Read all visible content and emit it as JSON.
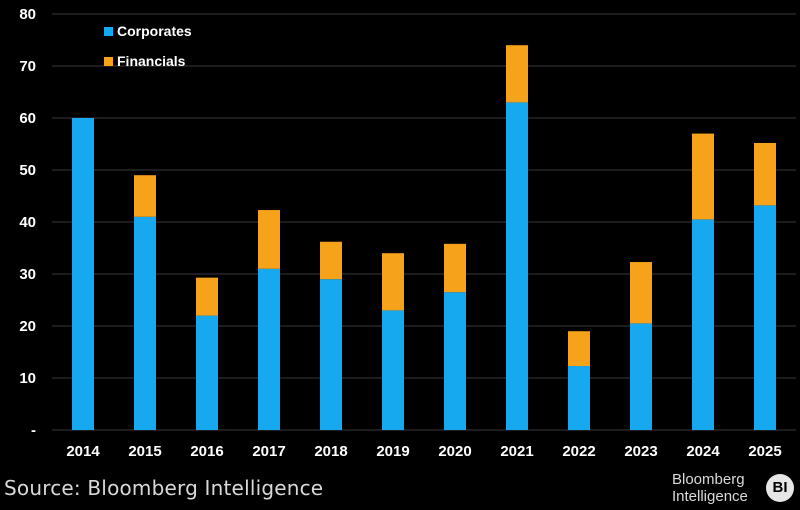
{
  "chart_data": {
    "type": "bar",
    "stacked": true,
    "categories": [
      "2014",
      "2015",
      "2016",
      "2017",
      "2018",
      "2019",
      "2020",
      "2021",
      "2022",
      "2023",
      "2024",
      "2025"
    ],
    "series": [
      {
        "name": "Corporates",
        "color": "#16a9ef",
        "values": [
          60,
          41,
          22,
          31,
          29,
          23,
          26.5,
          63,
          12.3,
          20.5,
          40.5,
          43.2
        ]
      },
      {
        "name": "Financials",
        "color": "#f7a21b",
        "values": [
          0,
          8,
          7.3,
          11.3,
          7.2,
          11,
          9.3,
          11,
          6.7,
          11.8,
          16.5,
          12
        ]
      }
    ],
    "ylim": [
      0,
      80
    ],
    "yticks": [
      0,
      10,
      20,
      30,
      40,
      50,
      60,
      70,
      80
    ],
    "ytick_labels": [
      "-",
      "10",
      "20",
      "30",
      "40",
      "50",
      "60",
      "70",
      "80"
    ],
    "grid": true,
    "legend": "top-left"
  },
  "footer": {
    "source": "Source: Bloomberg Intelligence",
    "brand_line1": "Bloomberg",
    "brand_line2": "Intelligence",
    "brand_badge": "BI"
  }
}
